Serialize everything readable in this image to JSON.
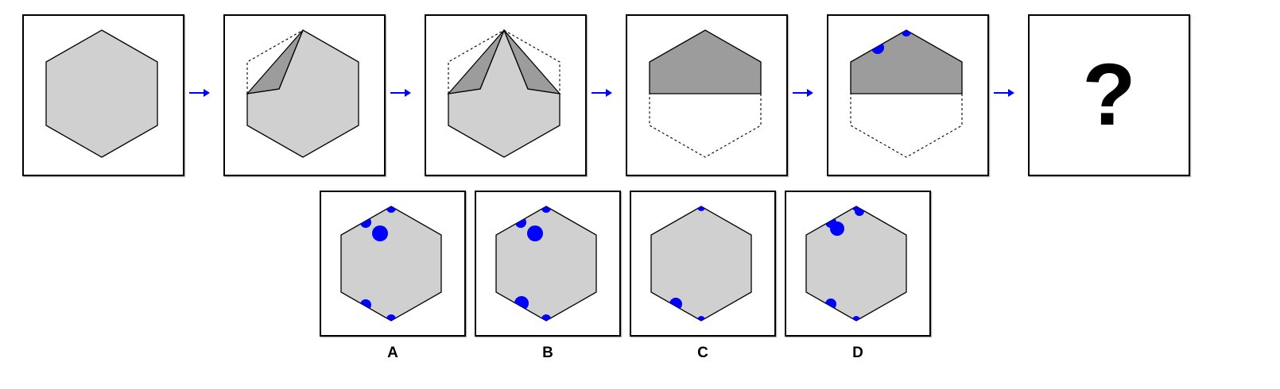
{
  "colors": {
    "hex_fill": "#d0d0d0",
    "fold_fill": "#9c9c9c",
    "dot_color": "#0000ff",
    "arrow_color": "#0000ff",
    "outline": "#000000"
  },
  "sequence": {
    "panels": [
      {
        "step": 1,
        "content": "hexagon"
      },
      {
        "step": 2,
        "content": "left-top-corner-folded"
      },
      {
        "step": 3,
        "content": "both-top-corners-folded"
      },
      {
        "step": 4,
        "content": "folded-in-half"
      },
      {
        "step": 5,
        "content": "punched-at-top"
      },
      {
        "step": 6,
        "content": "unknown"
      }
    ],
    "unknown_mark": "?",
    "arrow_icon": "right-arrow-icon"
  },
  "options": [
    {
      "label": "A"
    },
    {
      "label": "B"
    },
    {
      "label": "C"
    },
    {
      "label": "D"
    }
  ]
}
